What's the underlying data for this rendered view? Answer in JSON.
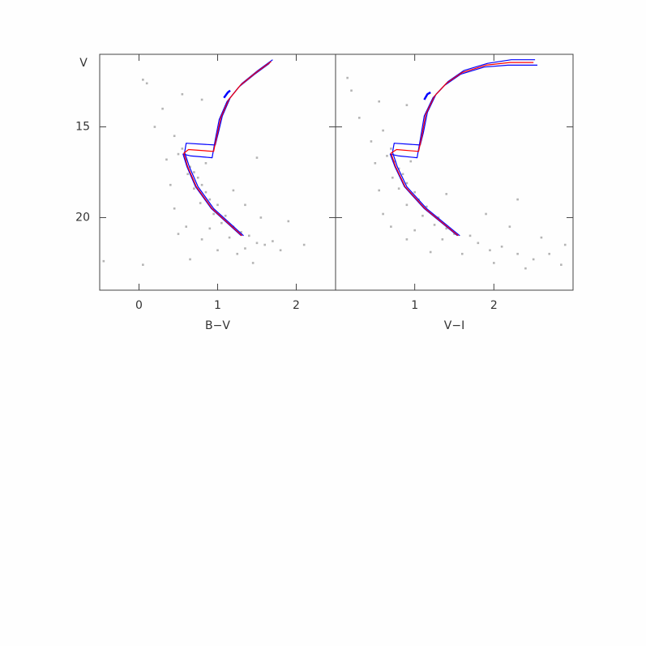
{
  "chart_data": [
    {
      "type": "scatter",
      "xlabel": "B−V",
      "ylabel": "V",
      "xlim": [
        -0.5,
        2.5
      ],
      "ylim": [
        24,
        11
      ],
      "xticks": [
        0,
        1,
        2
      ],
      "yticks": [
        15,
        20
      ],
      "points": {
        "color": "#b4b4b4",
        "x": [
          0.55,
          0.5,
          0.6,
          0.65,
          0.7,
          0.75,
          0.62,
          0.8,
          0.7,
          0.85,
          0.9,
          0.78,
          1.0,
          0.95,
          1.1,
          1.05,
          1.2,
          0.9,
          1.3,
          1.15,
          1.4,
          1.5,
          1.35,
          1.6,
          1.7,
          1.25,
          1.0,
          0.8,
          0.6,
          0.5,
          0.45,
          0.4,
          0.35,
          0.2,
          0.3,
          0.1,
          0.05,
          0.55,
          0.8,
          0.45,
          1.8,
          2.1,
          1.9,
          1.55,
          0.65,
          1.45,
          -0.45,
          0.05,
          1.2,
          1.35,
          0.85,
          1.5
        ],
        "y": [
          16.2,
          16.5,
          16.8,
          17.2,
          17.5,
          17.8,
          17.6,
          18.2,
          18.4,
          18.6,
          19.0,
          19.2,
          19.3,
          19.8,
          19.9,
          20.3,
          20.5,
          20.6,
          20.8,
          21.1,
          21.0,
          21.4,
          21.7,
          21.5,
          21.3,
          22.0,
          21.8,
          21.2,
          20.5,
          20.9,
          19.5,
          18.2,
          16.8,
          15.0,
          14.0,
          12.6,
          12.4,
          13.2,
          13.5,
          15.5,
          21.8,
          21.5,
          20.2,
          20.0,
          22.3,
          22.5,
          22.4,
          22.6,
          18.5,
          19.3,
          17.0,
          16.7
        ]
      },
      "series": [
        {
          "color": "#0000ff",
          "x": [
            1.33,
            0.95,
            0.75,
            0.64,
            0.58,
            0.6,
            0.97,
            1.01,
            1.06,
            1.16,
            1.31,
            1.51,
            1.7
          ],
          "y": [
            21.0,
            19.5,
            18.3,
            17.2,
            16.4,
            15.9,
            16.0,
            15.3,
            14.4,
            13.4,
            12.6,
            11.9,
            11.3
          ]
        },
        {
          "color": "#0000ff",
          "x": [
            1.3,
            0.92,
            0.72,
            0.61,
            0.56,
            0.66,
            0.93,
            0.97,
            1.02,
            1.12,
            1.27,
            1.47,
            1.66
          ],
          "y": [
            21.0,
            19.5,
            18.3,
            17.2,
            16.5,
            16.6,
            16.7,
            15.7,
            14.6,
            13.6,
            12.8,
            12.1,
            11.5
          ]
        },
        {
          "color": "#ff0000",
          "x": [
            1.31,
            0.93,
            0.73,
            0.62,
            0.57,
            0.63,
            0.95,
            0.99,
            1.04,
            1.14,
            1.29,
            1.49,
            1.68
          ],
          "y": [
            21.0,
            19.5,
            18.3,
            17.2,
            16.45,
            16.25,
            16.35,
            15.5,
            14.5,
            13.5,
            12.7,
            12.0,
            11.4
          ]
        },
        {
          "color": "#0000ff",
          "x": [
            1.08,
            1.13,
            1.16
          ],
          "y": [
            13.4,
            13.1,
            13.0
          ]
        }
      ]
    },
    {
      "type": "scatter",
      "xlabel": "V−I",
      "xlim": [
        0,
        3
      ],
      "ylim": [
        24,
        11
      ],
      "xticks": [
        1,
        2
      ],
      "yticks": [
        15,
        20
      ],
      "points": {
        "color": "#b4b4b4",
        "x": [
          0.7,
          0.65,
          0.75,
          0.8,
          0.85,
          0.72,
          0.9,
          0.8,
          1.0,
          1.05,
          0.9,
          1.15,
          1.1,
          1.3,
          1.25,
          1.4,
          1.0,
          1.5,
          1.35,
          1.7,
          1.8,
          1.95,
          2.1,
          2.3,
          2.5,
          2.7,
          2.85,
          2.4,
          2.0,
          1.6,
          1.2,
          0.9,
          0.7,
          0.6,
          0.55,
          0.5,
          0.45,
          0.3,
          0.2,
          0.15,
          0.55,
          0.9,
          0.6,
          2.2,
          2.6,
          2.9,
          1.9,
          1.4,
          0.95,
          2.3
        ],
        "y": [
          16.2,
          16.6,
          16.9,
          17.3,
          17.6,
          17.8,
          18.1,
          18.4,
          18.6,
          19.0,
          19.3,
          19.4,
          19.9,
          20.0,
          20.4,
          20.6,
          20.7,
          20.9,
          21.2,
          21.0,
          21.4,
          21.8,
          21.6,
          22.0,
          22.3,
          22.0,
          22.6,
          22.8,
          22.5,
          22.0,
          21.9,
          21.2,
          20.5,
          19.8,
          18.5,
          17.0,
          15.8,
          14.5,
          13.0,
          12.3,
          13.6,
          13.8,
          15.2,
          20.5,
          21.1,
          21.5,
          19.8,
          18.7,
          16.9,
          19.0
        ]
      },
      "series": [
        {
          "color": "#0000ff",
          "x": [
            1.57,
            1.15,
            0.9,
            0.78,
            0.72,
            0.74,
            1.07,
            1.11,
            1.16,
            1.27,
            1.42,
            1.62,
            1.92,
            2.22,
            2.52
          ],
          "y": [
            21.0,
            19.5,
            18.3,
            17.2,
            16.4,
            15.9,
            16.0,
            15.3,
            14.2,
            13.2,
            12.5,
            11.9,
            11.5,
            11.3,
            11.3
          ]
        },
        {
          "color": "#0000ff",
          "x": [
            1.54,
            1.12,
            0.87,
            0.75,
            0.69,
            0.8,
            1.03,
            1.07,
            1.12,
            1.23,
            1.38,
            1.58,
            1.88,
            2.18,
            2.55
          ],
          "y": [
            21.0,
            19.5,
            18.3,
            17.2,
            16.5,
            16.6,
            16.7,
            15.7,
            14.4,
            13.4,
            12.7,
            12.1,
            11.7,
            11.6,
            11.6
          ]
        },
        {
          "color": "#ff0000",
          "x": [
            1.55,
            1.13,
            0.88,
            0.76,
            0.7,
            0.77,
            1.05,
            1.09,
            1.14,
            1.25,
            1.4,
            1.6,
            1.9,
            2.2,
            2.5
          ],
          "y": [
            21.0,
            19.5,
            18.3,
            17.2,
            16.45,
            16.25,
            16.35,
            15.5,
            14.3,
            13.3,
            12.6,
            12.0,
            11.6,
            11.45,
            11.45
          ]
        },
        {
          "color": "#0000ff",
          "x": [
            1.12,
            1.16,
            1.2
          ],
          "y": [
            13.5,
            13.2,
            13.1
          ]
        }
      ]
    }
  ]
}
